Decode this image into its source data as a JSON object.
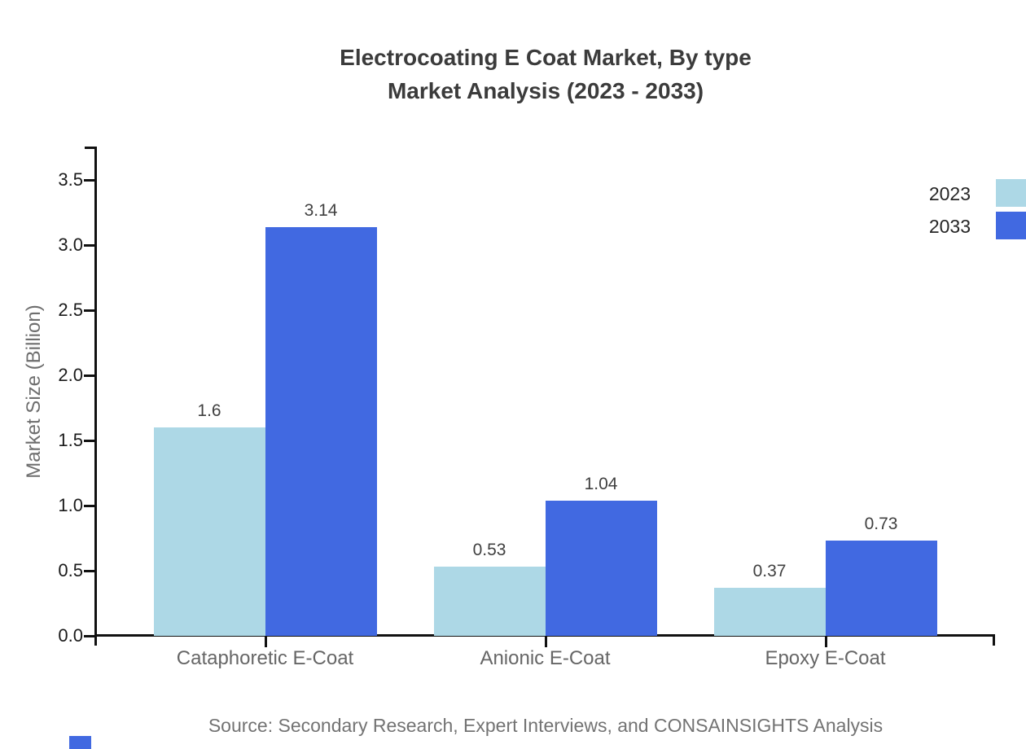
{
  "title": {
    "line1": "Electrocoating E Coat Market, By type",
    "line2": "Market Analysis (2023 - 2033)"
  },
  "source_note": "Source: Secondary Research, Expert Interviews, and CONSAINSIGHTS Analysis",
  "chart_data": {
    "type": "bar",
    "title": "Electrocoating E Coat Market, By type Market Analysis (2023 - 2033)",
    "categories": [
      "Cataphoretic E-Coat",
      "Anionic E-Coat",
      "Epoxy E-Coat"
    ],
    "series": [
      {
        "name": "2023",
        "color": "#ADD8E6",
        "values": [
          1.6,
          0.53,
          0.37
        ],
        "labels": [
          "1.6",
          "0.53",
          "0.37"
        ]
      },
      {
        "name": "2033",
        "color": "#4169E1",
        "values": [
          3.14,
          1.04,
          0.73
        ],
        "labels": [
          "3.14",
          "1.04",
          "0.73"
        ]
      }
    ],
    "xlabel": "",
    "ylabel": "Market Size (Billion)",
    "ylim": [
      0.0,
      3.75
    ],
    "yticks": [
      0.0,
      0.5,
      1.0,
      1.5,
      2.0,
      2.5,
      3.0,
      3.5
    ],
    "ytick_labels": [
      "0.0",
      "0.5",
      "1.0",
      "1.5",
      "2.0",
      "2.5",
      "3.0",
      "3.5"
    ],
    "grid": false,
    "legend_position": "upper-right outside plot, swatches clipped at right edge",
    "bar_value_labels_shown": true
  },
  "legend": {
    "items": [
      {
        "label": "2023",
        "color": "#ADD8E6"
      },
      {
        "label": "2033",
        "color": "#4169E1"
      }
    ]
  },
  "decorations": {
    "axis_color": "#111111",
    "corner_mark_color": "#4169E1"
  }
}
